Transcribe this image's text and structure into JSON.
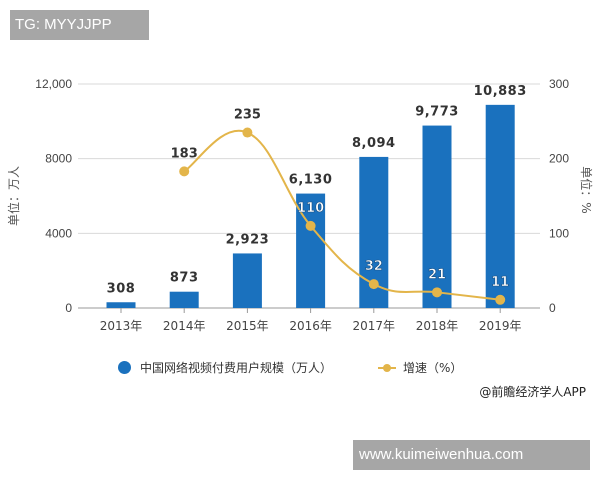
{
  "overlays": {
    "top_tag": "TG: MYYJJPP",
    "bottom_tag": "www.kuimeiwenhua.com"
  },
  "legend": {
    "series1": "中国网络视频付费用户规模（万人）",
    "series2": "增速（%）"
  },
  "source": "@前瞻经济学人APP",
  "colors": {
    "bar": "#1a71be",
    "line": "#e3b54a",
    "grid": "#d9d9d9",
    "axis_text": "#444444"
  },
  "chart_data": {
    "type": "bar+line",
    "title": "",
    "categories": [
      "2013年",
      "2014年",
      "2015年",
      "2016年",
      "2017年",
      "2018年",
      "2019年"
    ],
    "series": [
      {
        "name": "中国网络视频付费用户规模（万人）",
        "type": "bar",
        "axis": "left",
        "values": [
          308,
          873,
          2923,
          6130,
          8094,
          9773,
          10883
        ],
        "labels": [
          "308",
          "873",
          "2,923",
          "6,130",
          "8,094",
          "9,773",
          "10,883"
        ]
      },
      {
        "name": "增速（%）",
        "type": "line",
        "axis": "right",
        "values": [
          null,
          183,
          235,
          110,
          32,
          21,
          11
        ],
        "labels": [
          "",
          "183",
          "235",
          "110",
          "32",
          "21",
          "11"
        ]
      }
    ],
    "ylabel": "单位：万人",
    "y2label": "单位：%",
    "ylim": [
      0,
      12000
    ],
    "y2lim": [
      0,
      300
    ],
    "yticks": [
      "0",
      "4000",
      "8000",
      "12,000"
    ],
    "y2ticks": [
      "0",
      "100",
      "200",
      "300"
    ],
    "grid": true,
    "legend_position": "bottom"
  }
}
